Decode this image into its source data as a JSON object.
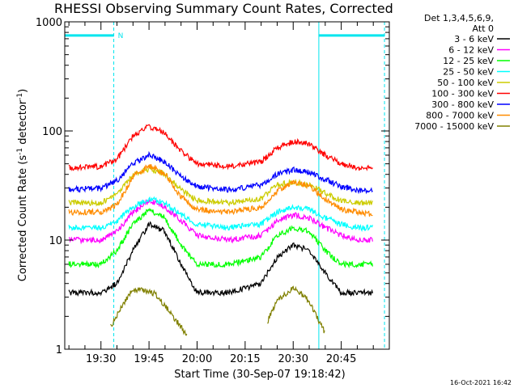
{
  "chart_data": {
    "type": "line",
    "title": "RHESSI Observing Summary Count Rates, Corrected",
    "xlabel": "Start Time (30-Sep-07 19:18:42)",
    "ylabel": "Corrected Count Rate (s⁻¹ detector⁻¹)",
    "ylabel_parts": {
      "main": "Corrected Count Rate (s",
      "sup1": "-1",
      "mid": " detector",
      "sup2": "-1",
      "end": ")"
    },
    "yscale": "log",
    "ylim": [
      1,
      1000
    ],
    "xlim": [
      "19:18:42",
      "21:00:00"
    ],
    "y_tick_labels": [
      "1",
      "10",
      "100",
      "1000"
    ],
    "x_tick_labels": [
      "19:30",
      "19:45",
      "20:00",
      "20:15",
      "20:30",
      "20:45"
    ],
    "legend_header": [
      "Det 1,3,4,5,6,9,",
      "Att 0"
    ],
    "legend_position": "right",
    "footer_date": "16-Oct-2021 16:42",
    "flag_label": "N",
    "series": [
      {
        "name": "3 - 6 keV",
        "color": "#000000",
        "x": [
          "19:20",
          "19:30",
          "19:35",
          "19:40",
          "19:45",
          "19:50",
          "19:55",
          "20:00",
          "20:10",
          "20:20",
          "20:25",
          "20:30",
          "20:35",
          "20:40",
          "20:45",
          "20:50",
          "20:55"
        ],
        "values": [
          3.3,
          3.3,
          4,
          8,
          14,
          12,
          6,
          3.3,
          3.3,
          4,
          7,
          9,
          8,
          5,
          3.3,
          3.3,
          3.3
        ]
      },
      {
        "name": "6 - 12 keV",
        "color": "#ff00ff",
        "x": [
          "19:20",
          "19:30",
          "19:35",
          "19:40",
          "19:45",
          "19:50",
          "19:55",
          "20:00",
          "20:10",
          "20:20",
          "20:25",
          "20:30",
          "20:35",
          "20:40",
          "20:45",
          "20:50",
          "20:55"
        ],
        "values": [
          10,
          10,
          12,
          18,
          23,
          20,
          15,
          11,
          10,
          11,
          15,
          17,
          16,
          13,
          11,
          10,
          10
        ]
      },
      {
        "name": "12 - 25 keV",
        "color": "#00ff00",
        "x": [
          "19:20",
          "19:30",
          "19:35",
          "19:40",
          "19:45",
          "19:50",
          "19:55",
          "20:00",
          "20:10",
          "20:20",
          "20:25",
          "20:30",
          "20:35",
          "20:40",
          "20:45",
          "20:50",
          "20:55"
        ],
        "values": [
          6,
          6,
          8,
          14,
          19,
          16,
          9,
          6,
          6,
          7,
          11,
          13,
          12,
          8,
          6,
          6,
          6
        ]
      },
      {
        "name": "25 - 50 keV",
        "color": "#00ffff",
        "x": [
          "19:20",
          "19:30",
          "19:35",
          "19:40",
          "19:45",
          "19:50",
          "19:55",
          "20:00",
          "20:10",
          "20:20",
          "20:25",
          "20:30",
          "20:35",
          "20:40",
          "20:45",
          "20:50",
          "20:55"
        ],
        "values": [
          13,
          13,
          15,
          20,
          24,
          22,
          17,
          14,
          13,
          14,
          18,
          20,
          19,
          16,
          14,
          13,
          13
        ]
      },
      {
        "name": "50 - 100 keV",
        "color": "#cccc00",
        "x": [
          "19:20",
          "19:30",
          "19:35",
          "19:40",
          "19:45",
          "19:50",
          "19:55",
          "20:00",
          "20:10",
          "20:20",
          "20:25",
          "20:30",
          "20:35",
          "20:40",
          "20:45",
          "20:50",
          "20:55"
        ],
        "values": [
          22,
          22,
          26,
          40,
          45,
          40,
          29,
          23,
          22,
          24,
          32,
          34,
          32,
          27,
          23,
          22,
          22
        ]
      },
      {
        "name": "100 - 300 keV",
        "color": "#ff0000",
        "x": [
          "19:20",
          "19:30",
          "19:35",
          "19:40",
          "19:45",
          "19:50",
          "19:55",
          "20:00",
          "20:10",
          "20:20",
          "20:25",
          "20:30",
          "20:35",
          "20:40",
          "20:45",
          "20:50",
          "20:55"
        ],
        "values": [
          46,
          47,
          55,
          90,
          110,
          95,
          65,
          50,
          47,
          52,
          70,
          80,
          76,
          60,
          50,
          46,
          45
        ]
      },
      {
        "name": "300 - 800 keV",
        "color": "#0000ff",
        "x": [
          "19:20",
          "19:30",
          "19:35",
          "19:40",
          "19:45",
          "19:50",
          "19:55",
          "20:00",
          "20:10",
          "20:20",
          "20:25",
          "20:30",
          "20:35",
          "20:40",
          "20:45",
          "20:50",
          "20:55"
        ],
        "values": [
          29,
          30,
          35,
          50,
          60,
          52,
          38,
          31,
          29,
          32,
          40,
          44,
          42,
          36,
          31,
          29,
          28
        ]
      },
      {
        "name": "800 - 7000 keV",
        "color": "#ff8c00",
        "x": [
          "19:20",
          "19:30",
          "19:35",
          "19:40",
          "19:45",
          "19:50",
          "19:55",
          "20:00",
          "20:10",
          "20:20",
          "20:25",
          "20:30",
          "20:35",
          "20:40",
          "20:45",
          "20:50",
          "20:55"
        ],
        "values": [
          18,
          18,
          21,
          38,
          48,
          40,
          25,
          19,
          18,
          20,
          28,
          34,
          31,
          24,
          19,
          18,
          17
        ]
      },
      {
        "name": "7000 - 15000 keV",
        "color": "#808000",
        "x": [
          "19:20",
          "19:30",
          "19:33",
          "19:38",
          "19:40",
          "19:43",
          "19:47",
          "19:50",
          "19:55",
          "19:57",
          "20:00",
          "20:20",
          "20:22",
          "20:25",
          "20:30",
          "20:35",
          "20:38",
          "20:40",
          "20:42",
          "20:45",
          "20:55"
        ],
        "values": [
          null,
          null,
          1.6,
          2.9,
          3.5,
          3.5,
          3.2,
          2.5,
          1.6,
          1.3,
          null,
          null,
          1.8,
          2.8,
          3.6,
          2.8,
          1.8,
          1.4,
          null,
          null,
          null
        ]
      }
    ],
    "flag_bars": [
      {
        "start": "19:18:42",
        "end": "19:34:00",
        "value": 750
      },
      {
        "start": "20:38:00",
        "end": "20:58:30",
        "value": 750
      }
    ],
    "vertical_markers": [
      {
        "t": "19:18:42",
        "style": "solid"
      },
      {
        "t": "19:34:00",
        "style": "dashed"
      },
      {
        "t": "20:38:00",
        "style": "solid"
      },
      {
        "t": "20:58:30",
        "style": "dashed"
      }
    ]
  }
}
